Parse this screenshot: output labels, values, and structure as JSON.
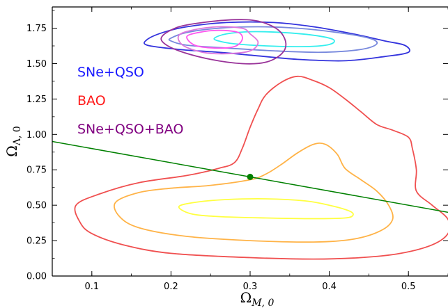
{
  "chart_data": {
    "type": "contour",
    "xlabel": "Ω",
    "xlabel_sub": "M, 0",
    "ylabel": "Ω",
    "ylabel_sub": "Λ, 0",
    "xlim": [
      0.05,
      0.55
    ],
    "ylim": [
      0.0,
      1.9
    ],
    "xticks": [
      0.1,
      0.2,
      0.3,
      0.4,
      0.5
    ],
    "xtick_labels": [
      "0.1",
      "0.2",
      "0.3",
      "0.4",
      "0.5"
    ],
    "yticks": [
      0.0,
      0.25,
      0.5,
      0.75,
      1.0,
      1.25,
      1.5,
      1.75
    ],
    "ytick_labels": [
      "0.00",
      "0.25",
      "0.50",
      "0.75",
      "1.00",
      "1.25",
      "1.50",
      "1.75"
    ],
    "grid": false,
    "legend_placement": "left",
    "legend": [
      {
        "label": "SNe+QSO",
        "color": "#1a1aff"
      },
      {
        "label": "BAO",
        "color": "#ff1a1a"
      },
      {
        "label": "SNe+QSO+BAO",
        "color": "#800080"
      }
    ],
    "flat_line": {
      "x": [
        0.05,
        0.55
      ],
      "y": [
        0.95,
        0.45
      ],
      "color": "#008000"
    },
    "marker": {
      "x": 0.3,
      "y": 0.7,
      "color": "#008000"
    },
    "contours": [
      {
        "group": "BAO",
        "level": "3sigma",
        "color": "#f05050",
        "points": [
          [
            0.08,
            0.5
          ],
          [
            0.11,
            0.58
          ],
          [
            0.16,
            0.66
          ],
          [
            0.22,
            0.71
          ],
          [
            0.26,
            0.76
          ],
          [
            0.28,
            0.8
          ],
          [
            0.29,
            0.9
          ],
          [
            0.3,
            1.05
          ],
          [
            0.31,
            1.18
          ],
          [
            0.32,
            1.28
          ],
          [
            0.34,
            1.37
          ],
          [
            0.36,
            1.41
          ],
          [
            0.38,
            1.38
          ],
          [
            0.4,
            1.33
          ],
          [
            0.42,
            1.25
          ],
          [
            0.44,
            1.16
          ],
          [
            0.46,
            1.07
          ],
          [
            0.48,
            1.03
          ],
          [
            0.5,
            0.98
          ],
          [
            0.505,
            0.9
          ],
          [
            0.51,
            0.75
          ],
          [
            0.51,
            0.6
          ],
          [
            0.53,
            0.5
          ],
          [
            0.55,
            0.4
          ],
          [
            0.55,
            0.3
          ],
          [
            0.53,
            0.22
          ],
          [
            0.49,
            0.16
          ],
          [
            0.44,
            0.13
          ],
          [
            0.38,
            0.12
          ],
          [
            0.3,
            0.13
          ],
          [
            0.2,
            0.16
          ],
          [
            0.14,
            0.22
          ],
          [
            0.1,
            0.3
          ],
          [
            0.085,
            0.38
          ],
          [
            0.08,
            0.5
          ]
        ]
      },
      {
        "group": "BAO",
        "level": "2sigma",
        "color": "#ffb347",
        "points": [
          [
            0.13,
            0.52
          ],
          [
            0.16,
            0.59
          ],
          [
            0.2,
            0.62
          ],
          [
            0.25,
            0.64
          ],
          [
            0.3,
            0.68
          ],
          [
            0.32,
            0.72
          ],
          [
            0.34,
            0.79
          ],
          [
            0.36,
            0.87
          ],
          [
            0.38,
            0.93
          ],
          [
            0.395,
            0.93
          ],
          [
            0.41,
            0.86
          ],
          [
            0.42,
            0.76
          ],
          [
            0.44,
            0.68
          ],
          [
            0.46,
            0.6
          ],
          [
            0.475,
            0.5
          ],
          [
            0.48,
            0.4
          ],
          [
            0.465,
            0.32
          ],
          [
            0.43,
            0.26
          ],
          [
            0.38,
            0.24
          ],
          [
            0.3,
            0.25
          ],
          [
            0.22,
            0.28
          ],
          [
            0.16,
            0.34
          ],
          [
            0.135,
            0.42
          ],
          [
            0.13,
            0.52
          ]
        ]
      },
      {
        "group": "BAO",
        "level": "1sigma",
        "color": "#ffff40",
        "points": [
          [
            0.21,
            0.49
          ],
          [
            0.23,
            0.52
          ],
          [
            0.27,
            0.54
          ],
          [
            0.32,
            0.545
          ],
          [
            0.37,
            0.53
          ],
          [
            0.4,
            0.5
          ],
          [
            0.425,
            0.46
          ],
          [
            0.43,
            0.43
          ],
          [
            0.42,
            0.41
          ],
          [
            0.38,
            0.405
          ],
          [
            0.32,
            0.41
          ],
          [
            0.26,
            0.42
          ],
          [
            0.225,
            0.44
          ],
          [
            0.21,
            0.49
          ]
        ]
      },
      {
        "group": "SNe+QSO",
        "level": "3sigma",
        "color": "#3333dd",
        "points": [
          [
            0.17,
            1.67
          ],
          [
            0.19,
            1.72
          ],
          [
            0.22,
            1.76
          ],
          [
            0.27,
            1.79
          ],
          [
            0.33,
            1.79
          ],
          [
            0.38,
            1.76
          ],
          [
            0.43,
            1.71
          ],
          [
            0.47,
            1.66
          ],
          [
            0.495,
            1.63
          ],
          [
            0.5,
            1.58
          ],
          [
            0.47,
            1.55
          ],
          [
            0.42,
            1.52
          ],
          [
            0.36,
            1.53
          ],
          [
            0.3,
            1.56
          ],
          [
            0.26,
            1.58
          ],
          [
            0.21,
            1.6
          ],
          [
            0.17,
            1.63
          ],
          [
            0.17,
            1.67
          ]
        ]
      },
      {
        "group": "SNe+QSO",
        "level": "2sigma",
        "color": "#7788dd",
        "points": [
          [
            0.2,
            1.68
          ],
          [
            0.22,
            1.72
          ],
          [
            0.26,
            1.75
          ],
          [
            0.31,
            1.76
          ],
          [
            0.36,
            1.75
          ],
          [
            0.41,
            1.72
          ],
          [
            0.45,
            1.68
          ],
          [
            0.46,
            1.64
          ],
          [
            0.44,
            1.6
          ],
          [
            0.39,
            1.58
          ],
          [
            0.33,
            1.59
          ],
          [
            0.27,
            1.61
          ],
          [
            0.22,
            1.63
          ],
          [
            0.2,
            1.66
          ],
          [
            0.2,
            1.68
          ]
        ]
      },
      {
        "group": "SNe+QSO",
        "level": "1sigma",
        "color": "#33eeee",
        "points": [
          [
            0.255,
            1.68
          ],
          [
            0.27,
            1.71
          ],
          [
            0.3,
            1.725
          ],
          [
            0.34,
            1.72
          ],
          [
            0.38,
            1.7
          ],
          [
            0.405,
            1.67
          ],
          [
            0.4,
            1.635
          ],
          [
            0.37,
            1.62
          ],
          [
            0.32,
            1.625
          ],
          [
            0.28,
            1.64
          ],
          [
            0.26,
            1.66
          ],
          [
            0.255,
            1.68
          ]
        ]
      },
      {
        "group": "SNe+QSO+BAO",
        "level": "3sigma",
        "color": "#993399",
        "points": [
          [
            0.19,
            1.7
          ],
          [
            0.21,
            1.76
          ],
          [
            0.24,
            1.79
          ],
          [
            0.28,
            1.81
          ],
          [
            0.31,
            1.8
          ],
          [
            0.335,
            1.74
          ],
          [
            0.345,
            1.65
          ],
          [
            0.34,
            1.57
          ],
          [
            0.32,
            1.51
          ],
          [
            0.29,
            1.5
          ],
          [
            0.25,
            1.53
          ],
          [
            0.21,
            1.59
          ],
          [
            0.19,
            1.65
          ],
          [
            0.19,
            1.7
          ]
        ]
      },
      {
        "group": "SNe+QSO+BAO",
        "level": "2sigma",
        "color": "#dd77dd",
        "points": [
          [
            0.21,
            1.7
          ],
          [
            0.23,
            1.74
          ],
          [
            0.26,
            1.76
          ],
          [
            0.29,
            1.75
          ],
          [
            0.3,
            1.71
          ],
          [
            0.31,
            1.65
          ],
          [
            0.3,
            1.59
          ],
          [
            0.27,
            1.57
          ],
          [
            0.24,
            1.58
          ],
          [
            0.215,
            1.63
          ],
          [
            0.21,
            1.7
          ]
        ]
      },
      {
        "group": "SNe+QSO+BAO",
        "level": "1sigma",
        "color": "#ff55ee",
        "points": [
          [
            0.22,
            1.69
          ],
          [
            0.235,
            1.72
          ],
          [
            0.26,
            1.735
          ],
          [
            0.285,
            1.72
          ],
          [
            0.29,
            1.67
          ],
          [
            0.28,
            1.62
          ],
          [
            0.255,
            1.61
          ],
          [
            0.23,
            1.63
          ],
          [
            0.22,
            1.69
          ]
        ]
      }
    ]
  }
}
